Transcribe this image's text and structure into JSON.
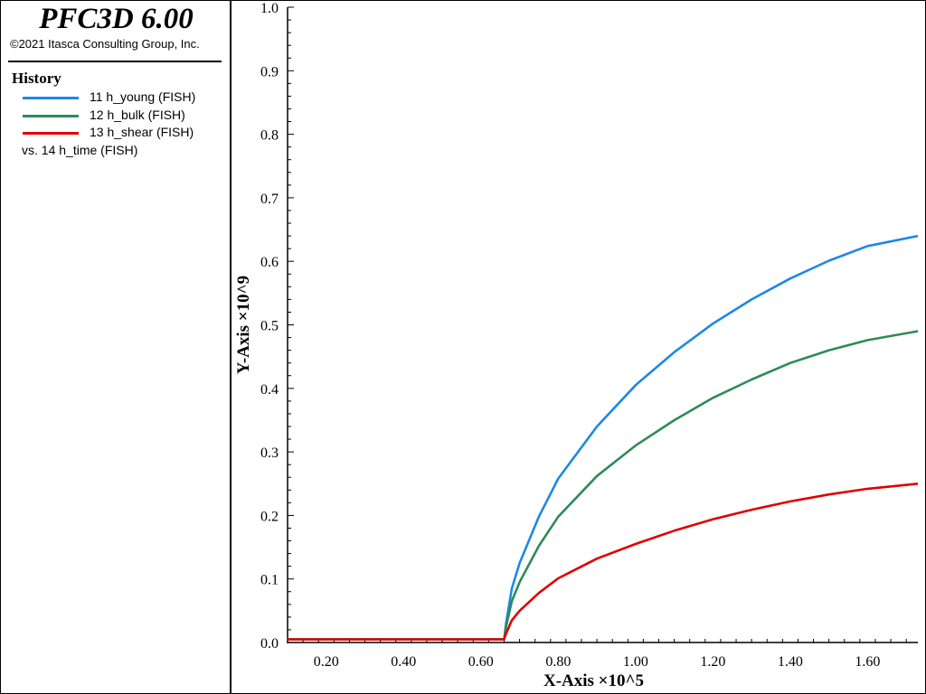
{
  "app": {
    "title": "PFC3D 6.00",
    "copyright": "©2021 Itasca Consulting Group, Inc."
  },
  "history": {
    "heading": "History",
    "items": [
      {
        "label": "11 h_young (FISH)",
        "color": "#1e88e5"
      },
      {
        "label": "12 h_bulk (FISH)",
        "color": "#2e8b57"
      },
      {
        "label": "13 h_shear (FISH)",
        "color": "#e00000"
      }
    ],
    "vs_label": "vs. 14 h_time (FISH)"
  },
  "chart_data": {
    "type": "line",
    "xlabel": "X-Axis ×10^5",
    "ylabel": "Y-Axis ×10^9",
    "xlim": [
      0.1,
      1.73
    ],
    "ylim": [
      0.0,
      1.0
    ],
    "x_ticks": [
      "0.20",
      "0.40",
      "0.60",
      "0.80",
      "1.00",
      "1.20",
      "1.40",
      "1.60"
    ],
    "y_ticks": [
      "0.0",
      "0.1",
      "0.2",
      "0.3",
      "0.4",
      "0.5",
      "0.6",
      "0.7",
      "0.8",
      "0.9",
      "1.0"
    ],
    "grid": false,
    "x": [
      0.1,
      0.66,
      0.665,
      0.68,
      0.7,
      0.75,
      0.8,
      0.9,
      1.0,
      1.1,
      1.2,
      1.3,
      1.4,
      1.5,
      1.6,
      1.73
    ],
    "series": [
      {
        "name": "11 h_young (FISH)",
        "color": "#1e88e5",
        "values": [
          0.005,
          0.005,
          0.03,
          0.085,
          0.125,
          0.198,
          0.258,
          0.34,
          0.405,
          0.457,
          0.502,
          0.54,
          0.573,
          0.601,
          0.624,
          0.64
        ]
      },
      {
        "name": "12 h_bulk (FISH)",
        "color": "#2e8b57",
        "values": [
          0.005,
          0.005,
          0.025,
          0.065,
          0.095,
          0.152,
          0.198,
          0.262,
          0.31,
          0.35,
          0.385,
          0.414,
          0.44,
          0.46,
          0.476,
          0.49
        ]
      },
      {
        "name": "13 h_shear (FISH)",
        "color": "#e00000",
        "values": [
          0.005,
          0.005,
          0.014,
          0.035,
          0.05,
          0.078,
          0.101,
          0.132,
          0.155,
          0.176,
          0.194,
          0.209,
          0.222,
          0.233,
          0.242,
          0.25
        ]
      }
    ]
  }
}
